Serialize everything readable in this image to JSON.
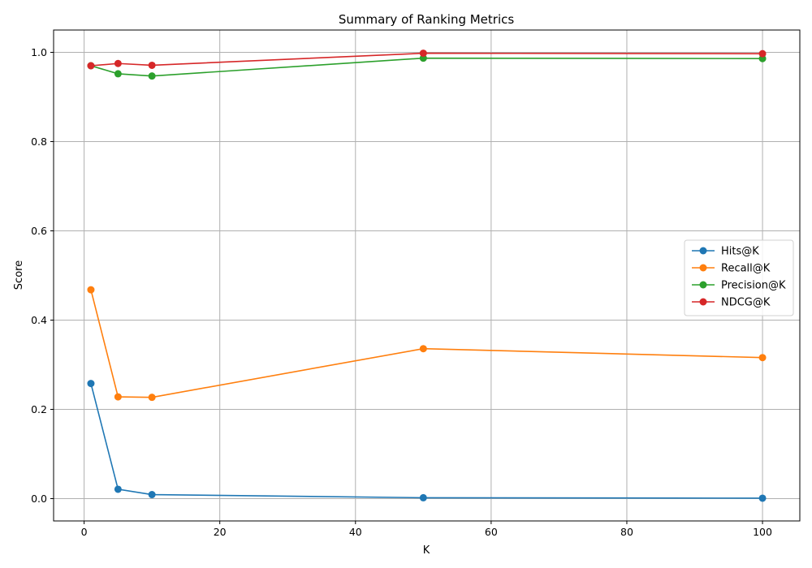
{
  "chart_data": {
    "type": "line",
    "title": "Summary of Ranking Metrics",
    "xlabel": "K",
    "ylabel": "Score",
    "x": [
      1,
      5,
      10,
      50,
      100
    ],
    "xlim": [
      -4.5,
      105.5
    ],
    "ylim": [
      -0.05,
      1.05
    ],
    "xticks": [
      "0",
      "20",
      "40",
      "60",
      "80",
      "100"
    ],
    "yticks": [
      "0.0",
      "0.2",
      "0.4",
      "0.6",
      "0.8",
      "1.0"
    ],
    "grid": true,
    "legend_position": "center-right",
    "series": [
      {
        "name": "Hits@K",
        "color": "#1f77b4",
        "values": [
          0.258,
          0.021,
          0.009,
          0.002,
          0.001
        ]
      },
      {
        "name": "Recall@K",
        "color": "#ff7f0e",
        "values": [
          0.468,
          0.228,
          0.227,
          0.336,
          0.316
        ]
      },
      {
        "name": "Precision@K",
        "color": "#2ca02c",
        "values": [
          0.97,
          0.952,
          0.947,
          0.987,
          0.986
        ]
      },
      {
        "name": "NDCG@K",
        "color": "#d62728",
        "values": [
          0.97,
          0.975,
          0.971,
          0.998,
          0.997
        ]
      }
    ]
  }
}
